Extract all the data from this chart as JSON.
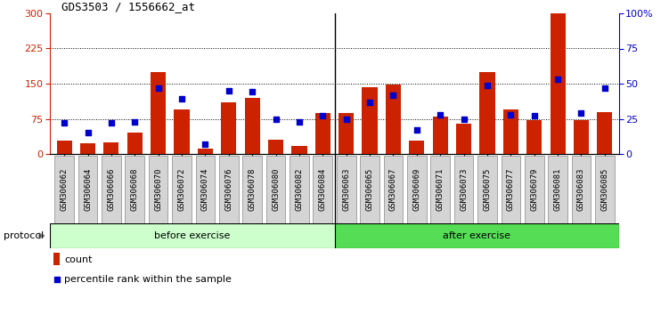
{
  "title": "GDS3503 / 1556662_at",
  "categories": [
    "GSM306062",
    "GSM306064",
    "GSM306066",
    "GSM306068",
    "GSM306070",
    "GSM306072",
    "GSM306074",
    "GSM306076",
    "GSM306078",
    "GSM306080",
    "GSM306082",
    "GSM306084",
    "GSM306063",
    "GSM306065",
    "GSM306067",
    "GSM306069",
    "GSM306071",
    "GSM306073",
    "GSM306075",
    "GSM306077",
    "GSM306079",
    "GSM306081",
    "GSM306083",
    "GSM306085"
  ],
  "count_values": [
    28,
    22,
    25,
    45,
    175,
    95,
    12,
    110,
    120,
    30,
    18,
    88,
    88,
    143,
    148,
    28,
    80,
    65,
    175,
    95,
    72,
    300,
    72,
    90
  ],
  "percentile_values": [
    22,
    15,
    22,
    23,
    47,
    39,
    7,
    45,
    44,
    25,
    23,
    27,
    25,
    37,
    42,
    17,
    28,
    25,
    49,
    28,
    27,
    53,
    29,
    47
  ],
  "before_count": 12,
  "after_count": 12,
  "bar_color": "#cc2200",
  "scatter_color": "#0000cc",
  "before_bg": "#ccffcc",
  "after_bg": "#55dd55",
  "left_axis_color": "#cc2200",
  "right_axis_color": "#0000cc",
  "left_yticks": [
    0,
    75,
    150,
    225,
    300
  ],
  "right_yticks": [
    0,
    25,
    50,
    75,
    100
  ],
  "right_ytick_labels": [
    "0",
    "25",
    "50",
    "75",
    "100%"
  ],
  "grid_lines": [
    75,
    150,
    225
  ],
  "ylim": [
    0,
    300
  ],
  "right_ylim": [
    0,
    100
  ],
  "protocol_label": "protocol",
  "before_label": "before exercise",
  "after_label": "after exercise",
  "legend_count_label": "count",
  "legend_pct_label": "percentile rank within the sample"
}
